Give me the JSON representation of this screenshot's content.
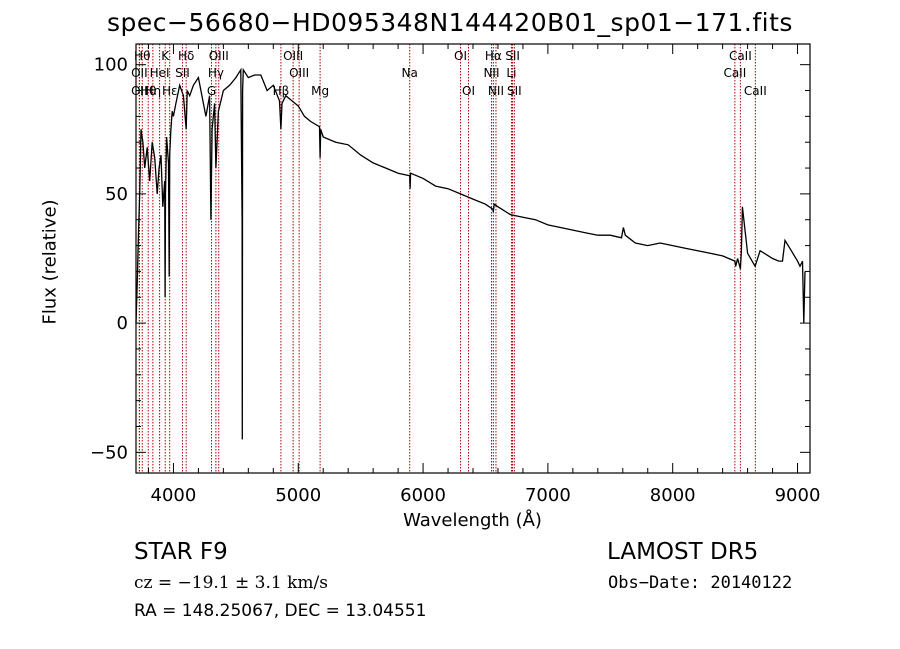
{
  "chart_data": {
    "type": "line",
    "title": "spec−56680−HD095348N144420B01_sp01−171.fits",
    "xlabel": "Wavelength (Å)",
    "ylabel": "Flux (relative)",
    "xlim": [
      3700,
      9100
    ],
    "ylim": [
      -58,
      108
    ],
    "xticks": [
      4000,
      5000,
      6000,
      7000,
      8000,
      9000
    ],
    "xtick_labels": [
      "4000",
      "5000",
      "6000",
      "7000",
      "8000",
      "9000"
    ],
    "yticks": [
      -50,
      0,
      50,
      100
    ],
    "ytick_labels": [
      "−50",
      "0",
      "50",
      "100"
    ],
    "grid": false,
    "series": [
      {
        "color": "#000000",
        "x": [
          3700,
          3710,
          3720,
          3730,
          3740,
          3755,
          3770,
          3790,
          3810,
          3830,
          3850,
          3870,
          3885,
          3900,
          3915,
          3930,
          3933,
          3936,
          3945,
          3960,
          3966,
          3970,
          3980,
          3990,
          4000,
          4020,
          4050,
          4080,
          4102,
          4110,
          4130,
          4160,
          4200,
          4240,
          4260,
          4290,
          4300,
          4310,
          4330,
          4340,
          4360,
          4400,
          4450,
          4500,
          4540,
          4550,
          4552,
          4554,
          4560,
          4600,
          4650,
          4700,
          4750,
          4800,
          4850,
          4861,
          4870,
          4900,
          4950,
          5000,
          5050,
          5100,
          5170,
          5175,
          5180,
          5200,
          5300,
          5400,
          5500,
          5600,
          5700,
          5800,
          5893,
          5896,
          5900,
          6000,
          6100,
          6200,
          6300,
          6400,
          6500,
          6560,
          6563,
          6570,
          6600,
          6700,
          6800,
          6900,
          7000,
          7100,
          7200,
          7300,
          7400,
          7500,
          7590,
          7605,
          7620,
          7700,
          7800,
          7900,
          8000,
          8100,
          8200,
          8300,
          8400,
          8498,
          8505,
          8520,
          8542,
          8550,
          8558,
          8600,
          8660,
          8700,
          8800,
          8850,
          8880,
          8900,
          8950,
          9000,
          9020,
          9040,
          9050,
          9060
        ],
        "y": [
          0,
          15,
          35,
          50,
          75,
          70,
          60,
          68,
          55,
          70,
          64,
          50,
          60,
          65,
          45,
          55,
          10,
          50,
          72,
          62,
          18,
          65,
          75,
          82,
          80,
          85,
          92,
          88,
          75,
          90,
          88,
          92,
          95,
          85,
          80,
          88,
          40,
          75,
          85,
          60,
          82,
          90,
          92,
          95,
          98,
          40,
          -45,
          90,
          98,
          95,
          96,
          96,
          90,
          92,
          86,
          75,
          85,
          88,
          86,
          84,
          80,
          78,
          76,
          64,
          75,
          72,
          70,
          69,
          65,
          62,
          60,
          58,
          57,
          52,
          58,
          56,
          53,
          52,
          50,
          48,
          46,
          44,
          43,
          46,
          45,
          42,
          41,
          40,
          38,
          37,
          36,
          35,
          34,
          34,
          33,
          37,
          34,
          31,
          30,
          31,
          30,
          29,
          28,
          27,
          26,
          24,
          22,
          25,
          21,
          28,
          45,
          27,
          22,
          28,
          25,
          24,
          24,
          32,
          28,
          24,
          22,
          24,
          0,
          20
        ]
      }
    ],
    "spectral_lines": [
      {
        "label": "OII",
        "x": 3727,
        "row": 3
      },
      {
        "label": "Hθ",
        "x": 3798,
        "row": 3
      },
      {
        "label": "Hη",
        "x": 3835,
        "row": 3
      },
      {
        "label": "Hδ",
        "x": 4102,
        "row": 1
      },
      {
        "label": "Hθ",
        "x": 3750,
        "row": 1
      },
      {
        "label": "K",
        "x": 3934,
        "row": 1
      },
      {
        "label": "OII",
        "x": 3727,
        "row": 2
      },
      {
        "label": "HeI",
        "x": 3889,
        "row": 2
      },
      {
        "label": "SII",
        "x": 4072,
        "row": 2
      },
      {
        "label": "Hε",
        "x": 3970,
        "row": 3
      },
      {
        "label": "OIII",
        "x": 4363,
        "row": 1
      },
      {
        "label": "Hγ",
        "x": 4340,
        "row": 2
      },
      {
        "label": "G",
        "x": 4305,
        "row": 3
      },
      {
        "label": "OIII",
        "x": 4959,
        "row": 1
      },
      {
        "label": "OIII",
        "x": 5007,
        "row": 2
      },
      {
        "label": "Hβ",
        "x": 4861,
        "row": 3
      },
      {
        "label": "Mg",
        "x": 5175,
        "row": 3
      },
      {
        "label": "Na",
        "x": 5893,
        "row": 2
      },
      {
        "label": "OI",
        "x": 6300,
        "row": 1
      },
      {
        "label": "OI",
        "x": 6364,
        "row": 3
      },
      {
        "label": "Hα",
        "x": 6563,
        "row": 1
      },
      {
        "label": "NII",
        "x": 6548,
        "row": 2
      },
      {
        "label": "NII",
        "x": 6584,
        "row": 3
      },
      {
        "label": "SII",
        "x": 6717,
        "row": 1
      },
      {
        "label": "Li",
        "x": 6708,
        "row": 2
      },
      {
        "label": "SII",
        "x": 6731,
        "row": 3
      },
      {
        "label": "CaII",
        "x": 8542,
        "row": 1
      },
      {
        "label": "CaII",
        "x": 8498,
        "row": 2
      },
      {
        "label": "CaII",
        "x": 8662,
        "row": 3
      }
    ],
    "line_color": "#b30000"
  },
  "info": {
    "object_class": "STAR     F9",
    "survey": "LAMOST  DR5",
    "cz": "cz = −19.1 ± 3.1 km/s",
    "obs_date": "Obs−Date: 20140122",
    "radec": "RA = 148.25067, DEC =  13.04551"
  }
}
